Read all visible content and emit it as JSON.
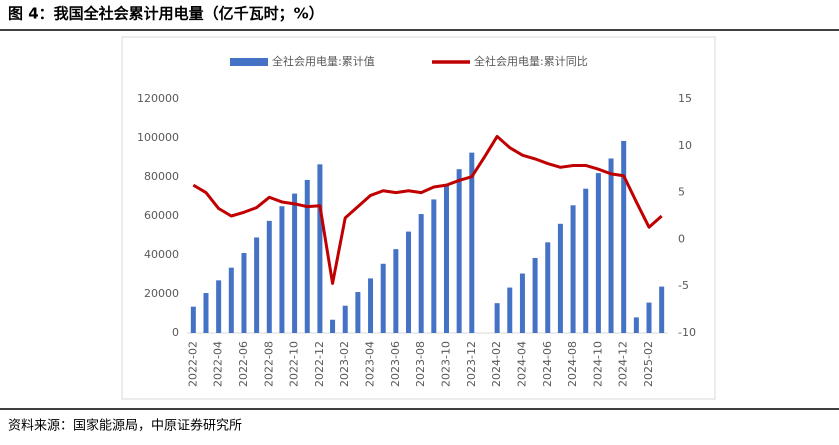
{
  "chart_data": {
    "type": "bar_line",
    "title": "图 4：我国全社会累计用电量（亿千瓦时；%）",
    "source": "资料来源：国家能源局，中原证券研究所",
    "categories": [
      "2022-02",
      null,
      "2022-04",
      null,
      "2022-06",
      null,
      "2022-08",
      null,
      "2022-10",
      null,
      "2022-12",
      null,
      "2023-02",
      null,
      "2023-04",
      null,
      "2023-06",
      null,
      "2023-08",
      null,
      "2023-10",
      null,
      "2023-12",
      null,
      "2024-02",
      null,
      "2024-04",
      null,
      "2024-06",
      null,
      "2024-08",
      null,
      "2024-10",
      null,
      "2024-12",
      null,
      "2025-02",
      null
    ],
    "series": [
      {
        "name": "全社会用电量:累计值",
        "color": "#4472c4",
        "kind": "bar",
        "values": [
          13500,
          20500,
          27000,
          33500,
          41000,
          49000,
          57500,
          65000,
          71500,
          78500,
          86500,
          6800,
          14000,
          21000,
          28000,
          35500,
          43000,
          52000,
          61000,
          68500,
          76000,
          84000,
          92500,
          null,
          15300,
          23300,
          30500,
          38500,
          46500,
          56000,
          65500,
          74000,
          82000,
          89500,
          98500,
          8000,
          15600,
          23800
        ]
      },
      {
        "name": "全社会用电量:累计同比",
        "color": "#c00000",
        "kind": "line",
        "axis": "y2",
        "values": [
          5.8,
          5.0,
          3.3,
          2.5,
          2.9,
          3.4,
          4.5,
          4.0,
          3.8,
          3.5,
          3.6,
          -4.7,
          2.3,
          3.5,
          4.7,
          5.2,
          5.0,
          5.2,
          5.0,
          5.6,
          5.8,
          6.3,
          6.7,
          8.8,
          11.0,
          9.8,
          9.0,
          8.6,
          8.1,
          7.7,
          7.9,
          7.9,
          7.5,
          7.0,
          6.8,
          4.0,
          1.3,
          2.5
        ]
      }
    ],
    "ylim": [
      0,
      120000
    ],
    "yticks": [
      0,
      20000,
      40000,
      60000,
      80000,
      100000,
      120000
    ],
    "y2lim": [
      -10,
      15
    ],
    "y2ticks": [
      -10,
      -5,
      0,
      5,
      10,
      15
    ],
    "grid": false,
    "legend": "top"
  }
}
